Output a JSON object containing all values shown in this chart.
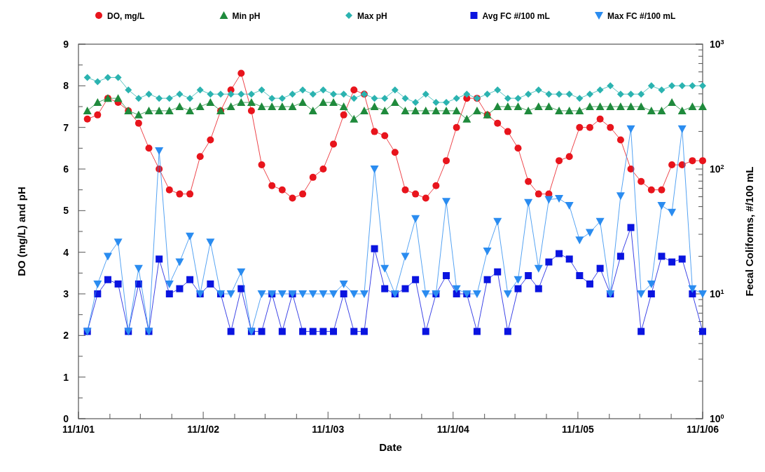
{
  "chart_data": {
    "type": "line",
    "xlabel": "Date",
    "ylabel": "DO (mg/L) and pH",
    "y2label": "Fecal Coliforms, #/100 mL",
    "x": [
      "2001-11-27",
      "2001-12-27",
      "2002-01-26",
      "2002-02-25",
      "2002-03-27",
      "2002-04-26",
      "2002-05-26",
      "2002-06-25",
      "2002-07-25",
      "2002-08-24",
      "2002-09-23",
      "2002-10-23",
      "2002-11-22",
      "2002-12-22",
      "2003-01-21",
      "2003-02-20",
      "2003-03-22",
      "2003-04-21",
      "2003-05-21",
      "2003-06-20",
      "2003-07-20",
      "2003-08-19",
      "2003-09-18",
      "2003-10-18",
      "2003-11-17",
      "2003-12-17",
      "2004-01-16",
      "2004-02-15",
      "2004-03-16",
      "2004-04-15",
      "2004-05-15",
      "2004-06-14",
      "2004-07-14",
      "2004-08-13",
      "2004-09-12",
      "2004-10-12",
      "2004-11-11",
      "2004-12-11",
      "2005-01-10",
      "2005-02-09",
      "2005-03-11",
      "2005-04-10",
      "2005-05-10",
      "2005-06-09",
      "2005-07-09",
      "2005-08-08",
      "2005-09-07",
      "2005-10-07",
      "2005-11-06",
      "2005-12-06",
      "2006-01-05",
      "2006-02-04",
      "2006-03-06",
      "2006-04-05",
      "2006-05-05",
      "2006-06-04",
      "2006-07-04",
      "2006-08-03",
      "2006-09-02",
      "2006-10-02",
      "2006-11-01"
    ],
    "series": [
      {
        "name": "DO, mg/L",
        "color": "#e8141c",
        "marker": "circle",
        "values": [
          7.2,
          7.3,
          7.7,
          7.6,
          7.4,
          7.1,
          6.5,
          6.0,
          5.5,
          5.4,
          5.4,
          6.3,
          6.7,
          7.4,
          7.9,
          8.3,
          7.4,
          6.1,
          5.6,
          5.5,
          5.3,
          5.4,
          5.8,
          6.0,
          6.6,
          7.3,
          7.9,
          7.8,
          6.9,
          6.8,
          6.4,
          5.5,
          5.4,
          5.3,
          5.6,
          6.2,
          7.0,
          7.7,
          7.7,
          7.3,
          7.1,
          6.9,
          6.5,
          5.7,
          5.4,
          5.4,
          6.2,
          6.3,
          7.0,
          7.0,
          7.2,
          7.0,
          6.7,
          6.0,
          5.7,
          5.5,
          5.5,
          6.1,
          6.1,
          6.2,
          6.2
        ]
      },
      {
        "name": "Min pH",
        "color": "#1f8a3c",
        "marker": "triangle",
        "values": [
          7.4,
          7.6,
          7.7,
          7.7,
          7.4,
          7.3,
          7.4,
          7.4,
          7.4,
          7.5,
          7.4,
          7.5,
          7.6,
          7.4,
          7.5,
          7.6,
          7.6,
          7.5,
          7.5,
          7.5,
          7.5,
          7.6,
          7.4,
          7.6,
          7.6,
          7.5,
          7.2,
          7.4,
          7.5,
          7.4,
          7.6,
          7.4,
          7.4,
          7.4,
          7.4,
          7.4,
          7.4,
          7.2,
          7.4,
          7.3,
          7.5,
          7.5,
          7.5,
          7.4,
          7.5,
          7.5,
          7.4,
          7.4,
          7.4,
          7.5,
          7.5,
          7.5,
          7.5,
          7.5,
          7.5,
          7.4,
          7.4,
          7.6,
          7.4,
          7.5,
          7.5
        ]
      },
      {
        "name": "Max pH",
        "color": "#2bb3b0",
        "marker": "diamond",
        "values": [
          8.2,
          8.1,
          8.2,
          8.2,
          7.9,
          7.7,
          7.8,
          7.7,
          7.7,
          7.8,
          7.7,
          7.9,
          7.8,
          7.8,
          7.8,
          7.8,
          7.8,
          7.9,
          7.7,
          7.7,
          7.8,
          7.9,
          7.8,
          7.9,
          7.8,
          7.8,
          7.7,
          7.8,
          7.7,
          7.7,
          7.9,
          7.7,
          7.6,
          7.8,
          7.6,
          7.6,
          7.7,
          7.8,
          7.7,
          7.8,
          7.9,
          7.7,
          7.7,
          7.8,
          7.9,
          7.8,
          7.8,
          7.8,
          7.7,
          7.8,
          7.9,
          8.0,
          7.8,
          7.8,
          7.8,
          8.0,
          7.9,
          8.0,
          8.0,
          8.0,
          8.0
        ]
      },
      {
        "name": "Avg FC #/100 mL",
        "color": "#0a14e0",
        "marker": "square",
        "axis": "y2",
        "values": [
          5,
          10,
          13,
          12,
          5,
          12,
          5,
          19,
          10,
          11,
          13,
          10,
          12,
          10,
          5,
          11,
          5,
          5,
          10,
          5,
          10,
          5,
          5,
          5,
          5,
          10,
          5,
          5,
          23,
          11,
          10,
          11,
          13,
          5,
          10,
          14,
          10,
          10,
          5,
          13,
          15,
          5,
          11,
          14,
          11,
          18,
          21,
          19,
          14,
          12,
          16,
          10,
          20,
          34,
          5,
          10,
          20,
          18,
          19,
          10,
          5
        ]
      },
      {
        "name": "Max FC #/100 mL",
        "color": "#2a8cf0",
        "marker": "triangle-down",
        "axis": "y2",
        "values": [
          5,
          12,
          20,
          26,
          5,
          16,
          5,
          140,
          12,
          18,
          29,
          10,
          26,
          10,
          10,
          15,
          5,
          10,
          10,
          10,
          10,
          10,
          10,
          10,
          10,
          12,
          10,
          10,
          100,
          16,
          10,
          20,
          40,
          10,
          10,
          55,
          11,
          10,
          10,
          22,
          38,
          10,
          13,
          54,
          16,
          57,
          58,
          51,
          27,
          31,
          38,
          10,
          61,
          210,
          10,
          12,
          51,
          45,
          210,
          11,
          10
        ]
      }
    ],
    "xlim": [
      "2001-11-01",
      "2006-11-01"
    ],
    "xticks": [
      {
        "value": "2001-11-01",
        "label": "11/1/01"
      },
      {
        "value": "2002-02-01",
        "label": null
      },
      {
        "value": "2002-05-01",
        "label": null
      },
      {
        "value": "2002-08-01",
        "label": null
      },
      {
        "value": "2002-11-01",
        "label": "11/1/02"
      },
      {
        "value": "2003-02-01",
        "label": null
      },
      {
        "value": "2003-05-01",
        "label": null
      },
      {
        "value": "2003-08-01",
        "label": null
      },
      {
        "value": "2003-11-01",
        "label": "11/1/03"
      },
      {
        "value": "2004-02-01",
        "label": null
      },
      {
        "value": "2004-05-01",
        "label": null
      },
      {
        "value": "2004-08-01",
        "label": null
      },
      {
        "value": "2004-11-01",
        "label": "11/1/04"
      },
      {
        "value": "2005-02-01",
        "label": null
      },
      {
        "value": "2005-05-01",
        "label": null
      },
      {
        "value": "2005-08-01",
        "label": null
      },
      {
        "value": "2005-11-01",
        "label": "11/1/05"
      },
      {
        "value": "2006-02-01",
        "label": null
      },
      {
        "value": "2006-05-01",
        "label": null
      },
      {
        "value": "2006-08-01",
        "label": null
      },
      {
        "value": "2006-11-01",
        "label": "11/1/06"
      }
    ],
    "ylim": [
      0,
      9
    ],
    "yticks": [
      0,
      {
        "value": 0.5,
        "label": null
      },
      1,
      {
        "value": 1.5,
        "label": null
      },
      2,
      {
        "value": 2.5,
        "label": null
      },
      3,
      {
        "value": 3.5,
        "label": null
      },
      4,
      {
        "value": 4.5,
        "label": null
      },
      5,
      {
        "value": 5.5,
        "label": null
      },
      6,
      {
        "value": 6.5,
        "label": null
      },
      7,
      {
        "value": 7.5,
        "label": null
      },
      8,
      {
        "value": 8.5,
        "label": null
      },
      9
    ],
    "log": "y2",
    "y2lim": [
      1,
      1000
    ],
    "y2ticks": [
      {
        "value": 1,
        "label": "10$^{0}$"
      },
      {
        "value": 2,
        "label": null
      },
      {
        "value": 3,
        "label": null
      },
      {
        "value": 4,
        "label": null
      },
      {
        "value": 5,
        "label": null
      },
      {
        "value": 6,
        "label": null
      },
      {
        "value": 7,
        "label": null
      },
      {
        "value": 8,
        "label": null
      },
      {
        "value": 9,
        "label": null
      },
      {
        "value": 10,
        "label": "10$^{1}$"
      },
      {
        "value": 20,
        "label": null
      },
      {
        "value": 30,
        "label": null
      },
      {
        "value": 40,
        "label": null
      },
      {
        "value": 50,
        "label": null
      },
      {
        "value": 60,
        "label": null
      },
      {
        "value": 70,
        "label": null
      },
      {
        "value": 80,
        "label": null
      },
      {
        "value": 90,
        "label": null
      },
      {
        "value": 100,
        "label": "10$^{2}$"
      },
      {
        "value": 200,
        "label": null
      },
      {
        "value": 300,
        "label": null
      },
      {
        "value": 400,
        "label": null
      },
      {
        "value": 500,
        "label": null
      },
      {
        "value": 600,
        "label": null
      },
      {
        "value": 700,
        "label": null
      },
      {
        "value": 800,
        "label": null
      },
      {
        "value": 900,
        "label": null
      },
      {
        "value": 1000,
        "label": "10$^{3}$"
      }
    ],
    "grid": false,
    "legend": "top",
    "line_style": "solid"
  }
}
